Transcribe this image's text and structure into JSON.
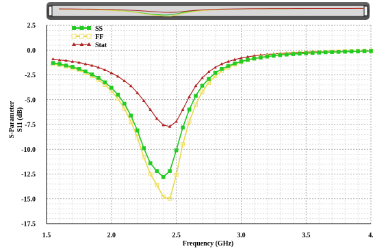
{
  "colors": {
    "ss": "#1ec81e",
    "ss_marker": "#22cc22",
    "ff": "#e8d84a",
    "ff_marker": "#f0e060",
    "stat": "#b02020",
    "grid_major": "#8a8a8a",
    "grid_minor": "#c0c0c0",
    "overview_bg": "#4a4a4a"
  },
  "chart_data": {
    "type": "line",
    "xlabel": "Frequency (GHz)",
    "ylabel_line1": "S-Parameter",
    "ylabel_line2": "S11 (dB)",
    "xlim": [
      1.5,
      4.0
    ],
    "ylim": [
      -17.5,
      2.5
    ],
    "xticks": [
      1.5,
      2.0,
      2.5,
      3.0,
      3.5,
      4.0
    ],
    "xtick_labels": [
      "1.5",
      "2.0",
      "2.5",
      "3.0",
      "3.5",
      "4."
    ],
    "yticks": [
      2.5,
      0.0,
      -2.5,
      -5.0,
      -7.5,
      -10.0,
      -12.5,
      -15.0,
      -17.5
    ],
    "ytick_labels": [
      "2.5",
      "0.0",
      "-2.5",
      "-5.0",
      "-7.5",
      "-10.0",
      "-12.5",
      "-15.0",
      "-17.5"
    ],
    "grid": true,
    "legend_position": "top-left",
    "x": [
      1.55,
      1.6,
      1.65,
      1.7,
      1.75,
      1.8,
      1.85,
      1.9,
      1.95,
      2.0,
      2.05,
      2.1,
      2.15,
      2.2,
      2.25,
      2.3,
      2.35,
      2.4,
      2.45,
      2.5,
      2.55,
      2.6,
      2.65,
      2.7,
      2.75,
      2.8,
      2.85,
      2.9,
      2.95,
      3.0,
      3.05,
      3.1,
      3.15,
      3.2,
      3.25,
      3.3,
      3.35,
      3.4,
      3.45,
      3.5,
      3.55,
      3.6,
      3.65,
      3.7,
      3.75,
      3.8,
      3.85,
      3.9,
      3.95,
      4.0
    ],
    "series": [
      {
        "name": "SS",
        "key": "ss",
        "marker": "square",
        "values": [
          -1.3,
          -1.4,
          -1.55,
          -1.7,
          -1.9,
          -2.15,
          -2.45,
          -2.8,
          -3.25,
          -3.8,
          -4.5,
          -5.4,
          -6.6,
          -8.1,
          -9.9,
          -11.4,
          -12.2,
          -12.8,
          -12.2,
          -10.1,
          -7.8,
          -6.0,
          -4.6,
          -3.6,
          -2.9,
          -2.3,
          -1.9,
          -1.6,
          -1.35,
          -1.15,
          -0.98,
          -0.85,
          -0.75,
          -0.65,
          -0.57,
          -0.5,
          -0.45,
          -0.4,
          -0.36,
          -0.32,
          -0.28,
          -0.25,
          -0.22,
          -0.2,
          -0.18,
          -0.16,
          -0.14,
          -0.12,
          -0.11,
          -0.1
        ]
      },
      {
        "name": "FF",
        "key": "ff",
        "marker": "square-open",
        "values": [
          -1.4,
          -1.5,
          -1.65,
          -1.8,
          -2.0,
          -2.3,
          -2.6,
          -3.0,
          -3.5,
          -4.1,
          -4.9,
          -5.9,
          -7.2,
          -8.8,
          -10.8,
          -12.5,
          -13.6,
          -14.8,
          -15.0,
          -12.6,
          -9.5,
          -7.2,
          -5.5,
          -4.2,
          -3.3,
          -2.6,
          -2.1,
          -1.75,
          -1.45,
          -1.2,
          -1.0,
          -0.85,
          -0.72,
          -0.62,
          -0.54,
          -0.47,
          -0.41,
          -0.36,
          -0.32,
          -0.28,
          -0.25,
          -0.22,
          -0.19,
          -0.17,
          -0.15,
          -0.13,
          -0.12,
          -0.1,
          -0.09,
          -0.08
        ]
      },
      {
        "name": "Stat",
        "key": "stat",
        "marker": "triangle",
        "values": [
          -0.9,
          -1.0,
          -1.05,
          -1.15,
          -1.25,
          -1.4,
          -1.55,
          -1.75,
          -2.0,
          -2.3,
          -2.65,
          -3.1,
          -3.6,
          -4.3,
          -5.1,
          -6.0,
          -6.9,
          -7.55,
          -7.7,
          -7.2,
          -6.0,
          -4.7,
          -3.6,
          -2.8,
          -2.2,
          -1.75,
          -1.4,
          -1.15,
          -0.95,
          -0.8,
          -0.68,
          -0.58,
          -0.5,
          -0.44,
          -0.39,
          -0.34,
          -0.3,
          -0.27,
          -0.24,
          -0.21,
          -0.19,
          -0.17,
          -0.15,
          -0.13,
          -0.12,
          -0.11,
          -0.1,
          -0.09,
          -0.08,
          -0.07
        ]
      }
    ]
  }
}
